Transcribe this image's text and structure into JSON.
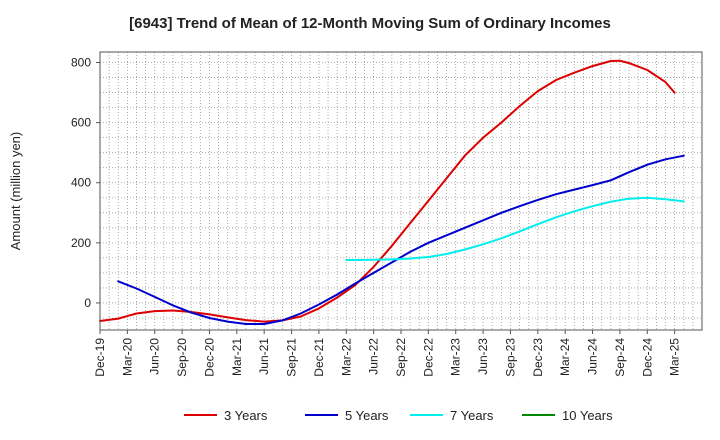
{
  "chart_data": {
    "type": "line",
    "title": "[6943]  Trend of Mean of 12-Month Moving Sum of Ordinary Incomes",
    "xlabel": "",
    "ylabel": "Amount (million yen)",
    "ylim": [
      -90,
      835
    ],
    "yticks": [
      0,
      200,
      400,
      600,
      800
    ],
    "xlim": [
      0,
      66
    ],
    "categories": [
      "Dec-19",
      "Mar-20",
      "Jun-20",
      "Sep-20",
      "Dec-20",
      "Mar-21",
      "Jun-21",
      "Sep-21",
      "Dec-21",
      "Mar-22",
      "Jun-22",
      "Sep-22",
      "Dec-22",
      "Mar-23",
      "Jun-23",
      "Sep-23",
      "Dec-23",
      "Mar-24",
      "Jun-24",
      "Sep-24",
      "Dec-24",
      "Mar-25"
    ],
    "grid": true,
    "legend_position": "bottom",
    "series": [
      {
        "name": "3 Years",
        "color": "#dd0000",
        "x": [
          0,
          2,
          4,
          6,
          8,
          10,
          12,
          14,
          16,
          18,
          20,
          22,
          24,
          26,
          28,
          30,
          32,
          34,
          36,
          38,
          40,
          42,
          44,
          46,
          48,
          50,
          52,
          54,
          56,
          57,
          58,
          60,
          62,
          63
        ],
        "y": [
          -60,
          -52,
          -35,
          -27,
          -25,
          -30,
          -38,
          -48,
          -57,
          -62,
          -58,
          -45,
          -18,
          18,
          60,
          120,
          190,
          265,
          340,
          415,
          490,
          550,
          600,
          655,
          705,
          742,
          766,
          788,
          805,
          806,
          798,
          775,
          735,
          700
        ]
      },
      {
        "name": "5 Years",
        "color": "#0000cc",
        "x": [
          2,
          4,
          6,
          8,
          10,
          12,
          14,
          16,
          18,
          20,
          22,
          24,
          26,
          28,
          30,
          32,
          34,
          36,
          38,
          40,
          42,
          44,
          46,
          48,
          50,
          52,
          54,
          56,
          58,
          60,
          62,
          64
        ],
        "y": [
          72,
          48,
          20,
          -8,
          -32,
          -50,
          -62,
          -70,
          -70,
          -58,
          -35,
          -5,
          28,
          65,
          100,
          135,
          170,
          200,
          225,
          250,
          275,
          300,
          322,
          343,
          362,
          377,
          392,
          408,
          435,
          460,
          478,
          490
        ]
      },
      {
        "name": "7 Years",
        "color": "#00eeee",
        "x": [
          27,
          28,
          30,
          32,
          34,
          36,
          38,
          40,
          42,
          44,
          46,
          48,
          50,
          52,
          54,
          56,
          58,
          60,
          62,
          64
        ],
        "y": [
          143,
          143,
          144,
          145,
          148,
          153,
          163,
          178,
          195,
          215,
          238,
          262,
          285,
          305,
          322,
          337,
          347,
          350,
          345,
          338
        ]
      },
      {
        "name": "10 Years",
        "color": "#008800",
        "x": [],
        "y": []
      }
    ]
  }
}
